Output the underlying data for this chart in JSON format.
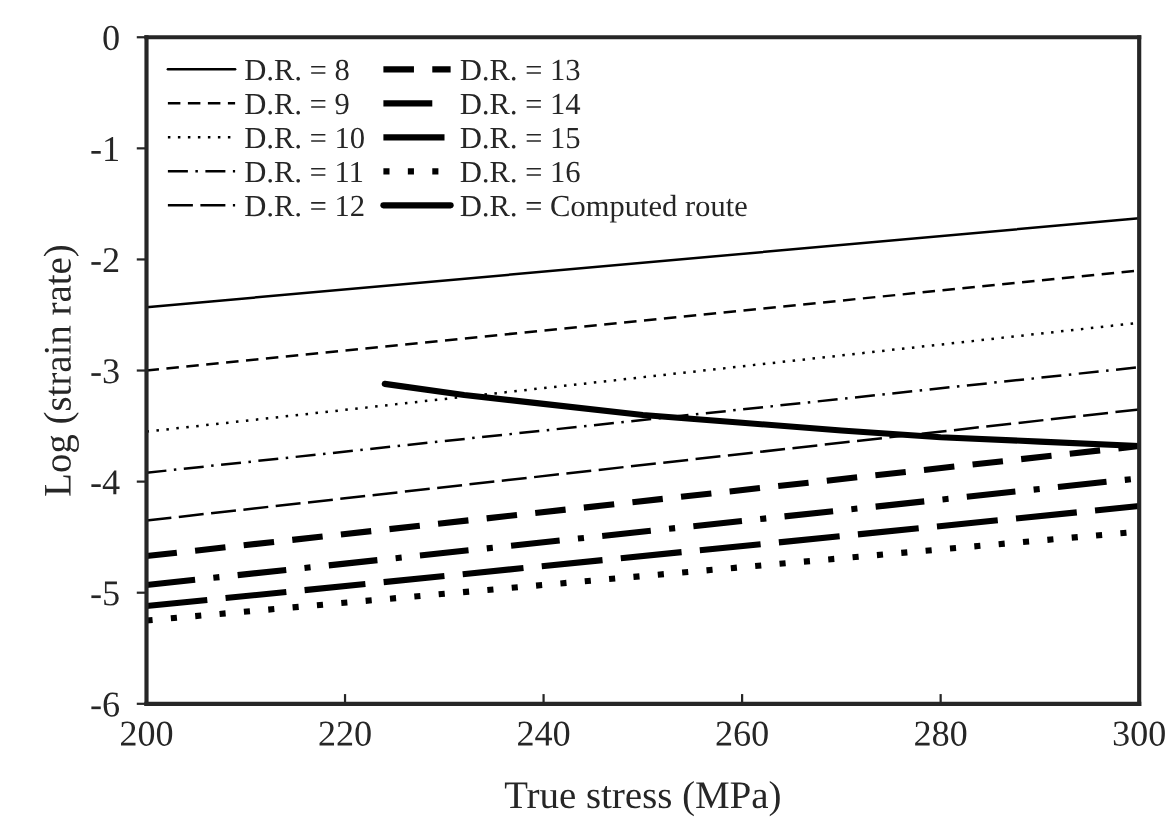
{
  "chart_data": {
    "type": "line",
    "xlabel": "True stress (MPa)",
    "ylabel": "Log (strain rate)",
    "xlim": [
      200,
      300
    ],
    "ylim": [
      -6,
      0
    ],
    "xticks": [
      200,
      220,
      240,
      260,
      280,
      300
    ],
    "yticks": [
      -6,
      -5,
      -4,
      -3,
      -2,
      -1,
      0
    ],
    "grid": false,
    "legend": "top left",
    "marker": "none",
    "series": [
      {
        "name": "D.R. = 8",
        "color": "#000000",
        "line_style": "solid",
        "x": [
          200,
          300
        ],
        "values": [
          -2.43,
          -1.63
        ]
      },
      {
        "name": "D.R. = 9",
        "color": "#000000",
        "line_style": "dashed",
        "x": [
          200,
          300
        ],
        "values": [
          -3.0,
          -2.1
        ]
      },
      {
        "name": "D.R. = 10",
        "color": "#000000",
        "line_style": "dotted",
        "x": [
          200,
          300
        ],
        "values": [
          -3.55,
          -2.57
        ]
      },
      {
        "name": "D.R. = 11",
        "color": "#000000",
        "line_style": "dashdot",
        "x": [
          200,
          300
        ],
        "values": [
          -3.92,
          -2.97
        ]
      },
      {
        "name": "D.R. = 12",
        "color": "#000000",
        "line_style": "longdash",
        "x": [
          200,
          300
        ],
        "values": [
          -4.35,
          -3.35
        ]
      },
      {
        "name": "D.R. = 13",
        "color": "#000000",
        "line_style": "dashed",
        "x": [
          200,
          300
        ],
        "values": [
          -4.67,
          -3.68
        ]
      },
      {
        "name": "D.R. = 14",
        "color": "#000000",
        "line_style": "dashdot",
        "x": [
          200,
          300
        ],
        "values": [
          -4.93,
          -3.97
        ]
      },
      {
        "name": "D.R. = 15",
        "color": "#000000",
        "line_style": "longdash",
        "x": [
          200,
          300
        ],
        "values": [
          -5.12,
          -4.22
        ]
      },
      {
        "name": "D.R. = 16",
        "color": "#000000",
        "line_style": "dotted",
        "x": [
          200,
          300
        ],
        "values": [
          -5.25,
          -4.45
        ]
      },
      {
        "name": "D.R. = Computed route",
        "color": "#000000",
        "line_style": "solid",
        "x": [
          224,
          232,
          240,
          250,
          260,
          270,
          280,
          290,
          300
        ],
        "values": [
          -3.12,
          -3.22,
          -3.3,
          -3.4,
          -3.47,
          -3.54,
          -3.6,
          -3.64,
          -3.68
        ]
      }
    ]
  }
}
